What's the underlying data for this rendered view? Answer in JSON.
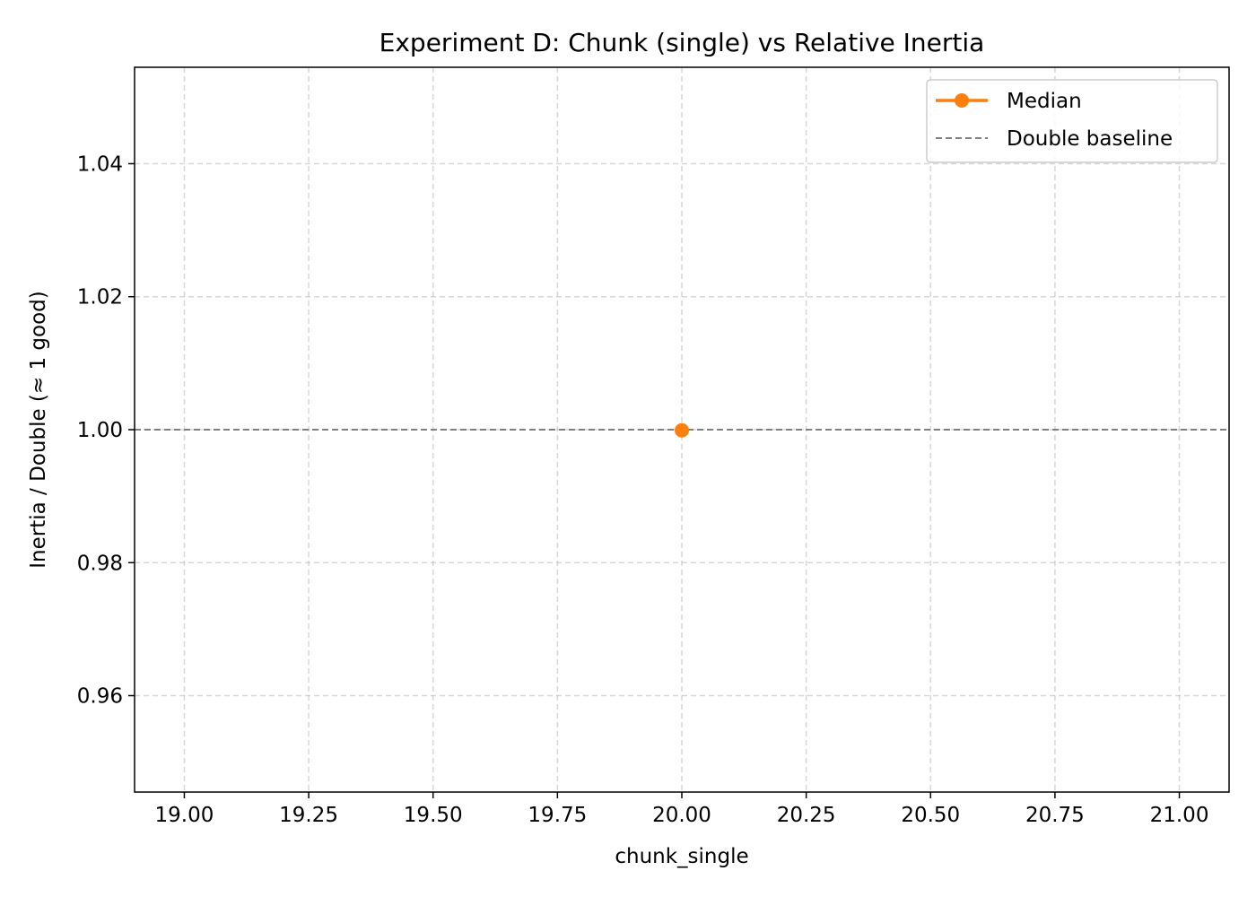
{
  "chart_data": {
    "type": "line",
    "title": "Experiment D: Chunk (single) vs Relative Inertia",
    "xlabel": "chunk_single",
    "ylabel": "Inertia / Double (≈ 1 good)",
    "xlim": [
      18.9,
      21.1
    ],
    "ylim": [
      0.9455,
      1.0545
    ],
    "xticks": [
      19.0,
      19.25,
      19.5,
      19.75,
      20.0,
      20.25,
      20.5,
      20.75,
      21.0
    ],
    "xtick_labels": [
      "19.00",
      "19.25",
      "19.50",
      "19.75",
      "20.00",
      "20.25",
      "20.50",
      "20.75",
      "21.00"
    ],
    "yticks": [
      0.96,
      0.98,
      1.0,
      1.02,
      1.04
    ],
    "ytick_labels": [
      "0.96",
      "0.98",
      "1.00",
      "1.02",
      "1.04"
    ],
    "grid": true,
    "legend_position": "top-right",
    "series": [
      {
        "name": "Median",
        "color": "#ff7f0e",
        "style": "line-with-circle-markers",
        "points": [
          {
            "x": 20,
            "y": 0.9999
          }
        ]
      }
    ],
    "reference_lines": [
      {
        "name": "Double baseline",
        "orientation": "horizontal",
        "y": 1.0,
        "color": "#808080",
        "style": "dashed"
      }
    ]
  }
}
